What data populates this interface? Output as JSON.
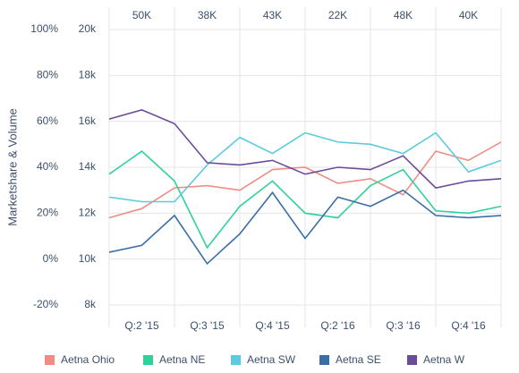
{
  "chart_data": {
    "type": "line",
    "y_axis_label": "Marketshare & Volume",
    "categories": [
      null,
      "Q:2 '15",
      null,
      "Q:3 '15",
      null,
      "Q:4 '15",
      null,
      "Q:2 '16",
      null,
      "Q:3 '16",
      null,
      "Q:4 '16",
      null
    ],
    "top_labels": [
      null,
      "50K",
      null,
      "38K",
      null,
      "43K",
      null,
      "22K",
      null,
      "48K",
      null,
      "40K",
      null
    ],
    "ylim": [
      -20,
      100
    ],
    "yticks": [
      {
        "value": -20,
        "label": "-20%"
      },
      {
        "value": 0,
        "label": "0%"
      },
      {
        "value": 20,
        "label": "20%"
      },
      {
        "value": 40,
        "label": "40%"
      },
      {
        "value": 60,
        "label": "60%"
      },
      {
        "value": 80,
        "label": "80%"
      },
      {
        "value": 100,
        "label": "100%"
      }
    ],
    "y2lim": [
      8000,
      20000
    ],
    "y2ticks": [
      {
        "value": 8000,
        "label": "8k"
      },
      {
        "value": 10000,
        "label": "10k"
      },
      {
        "value": 12000,
        "label": "12k"
      },
      {
        "value": 14000,
        "label": "14k"
      },
      {
        "value": 16000,
        "label": "16k"
      },
      {
        "value": 18000,
        "label": "18k"
      },
      {
        "value": 20000,
        "label": "20k"
      }
    ],
    "grid": true,
    "legend": "bottom",
    "series": [
      {
        "name": "Aetna Ohio",
        "color": "#f08c84",
        "values": [
          18,
          22,
          31,
          32,
          30,
          39,
          40,
          33,
          35,
          28,
          47,
          43,
          51
        ]
      },
      {
        "name": "Aetna NE",
        "color": "#2fd19b",
        "values": [
          37,
          47,
          34,
          5,
          23,
          34,
          20,
          18,
          32,
          39,
          21,
          20,
          23
        ]
      },
      {
        "name": "Aetna SW",
        "color": "#5ccbe0",
        "values": [
          27,
          25,
          25,
          41,
          53,
          46,
          55,
          51,
          50,
          46,
          55,
          38,
          43
        ]
      },
      {
        "name": "Aetna SE",
        "color": "#3a6ea5",
        "values": [
          3,
          6,
          19,
          -2,
          11,
          29,
          9,
          27,
          23,
          30,
          19,
          18,
          19
        ]
      },
      {
        "name": "Aetna W",
        "color": "#6b4c9a",
        "values": [
          61,
          65,
          59,
          42,
          41,
          43,
          37,
          40,
          39,
          45,
          31,
          34,
          35
        ]
      }
    ]
  }
}
